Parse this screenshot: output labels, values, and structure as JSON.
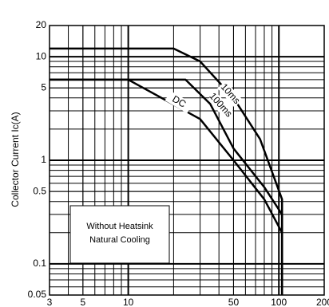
{
  "chart_data": {
    "type": "line",
    "xscale": "log",
    "yscale": "log",
    "grid": true,
    "ylabel": "Collector Current Ic(A)",
    "xlim": [
      3,
      200
    ],
    "xticks": [
      3,
      5,
      10,
      50,
      100,
      200
    ],
    "ylim": [
      0.05,
      20
    ],
    "yticks": [
      0.05,
      0.1,
      0.5,
      1,
      5,
      10,
      20
    ],
    "series": [
      {
        "name": "10ms",
        "color": "#000000",
        "x": [
          3,
          20,
          30,
          50,
          75,
          105,
          105
        ],
        "values": [
          12,
          12,
          9,
          4,
          1.6,
          0.42,
          0.05
        ]
      },
      {
        "name": "100ms",
        "color": "#000000",
        "x": [
          3,
          24,
          35,
          50,
          80,
          105,
          105
        ],
        "values": [
          6,
          6,
          3.5,
          1.3,
          0.55,
          0.3,
          0.05
        ]
      },
      {
        "name": "DC",
        "color": "#000000",
        "x": [
          3,
          10,
          30,
          50,
          80,
          105,
          105
        ],
        "values": [
          6,
          6,
          2.5,
          1,
          0.42,
          0.2,
          0.05
        ]
      }
    ],
    "annotations": [
      "Without Heatsink",
      "Natural Cooling"
    ]
  }
}
